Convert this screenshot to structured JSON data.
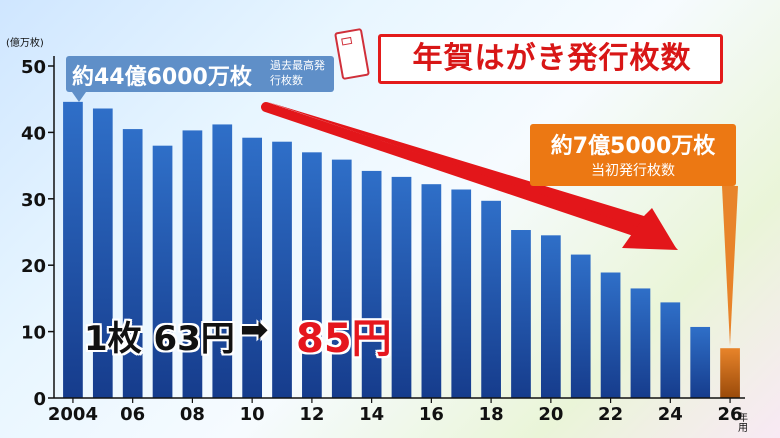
{
  "chart_data": {
    "type": "bar",
    "y_unit": "(億万枚)",
    "x_unit": "年用",
    "x": [
      2004,
      2005,
      2006,
      2007,
      2008,
      2009,
      2010,
      2011,
      2012,
      2013,
      2014,
      2015,
      2016,
      2017,
      2018,
      2019,
      2020,
      2021,
      2022,
      2023,
      2024,
      2025,
      2026
    ],
    "x_tick_labels": [
      "2004",
      "06",
      "08",
      "10",
      "12",
      "14",
      "16",
      "18",
      "20",
      "22",
      "24",
      "26"
    ],
    "values": [
      44.6,
      43.6,
      40.5,
      38.0,
      40.3,
      41.2,
      39.2,
      38.6,
      37.0,
      35.9,
      34.2,
      33.3,
      32.2,
      31.4,
      29.7,
      25.3,
      24.5,
      21.6,
      18.9,
      16.5,
      14.4,
      10.7,
      7.5
    ],
    "ylim": [
      0,
      50
    ],
    "y_ticks": [
      0,
      10,
      20,
      30,
      40,
      50
    ],
    "grid": false,
    "colors": {
      "bar": "#1f4fa6",
      "bar_top": "#3f7fd6",
      "highlight_bar": "#c86412",
      "highlight_bar_top": "#e8842a",
      "trend_arrow": "#e3161a"
    }
  },
  "title": "年賀はがき発行枚数",
  "annotation_max": {
    "value": "約44億6000万枚",
    "note": "過去最高発行枚数"
  },
  "annotation_initial": {
    "value": "約7億5000万枚",
    "note": "当初発行枚数"
  },
  "price": {
    "old": "1枚 63円",
    "arrow": "➡",
    "new": "85円"
  }
}
